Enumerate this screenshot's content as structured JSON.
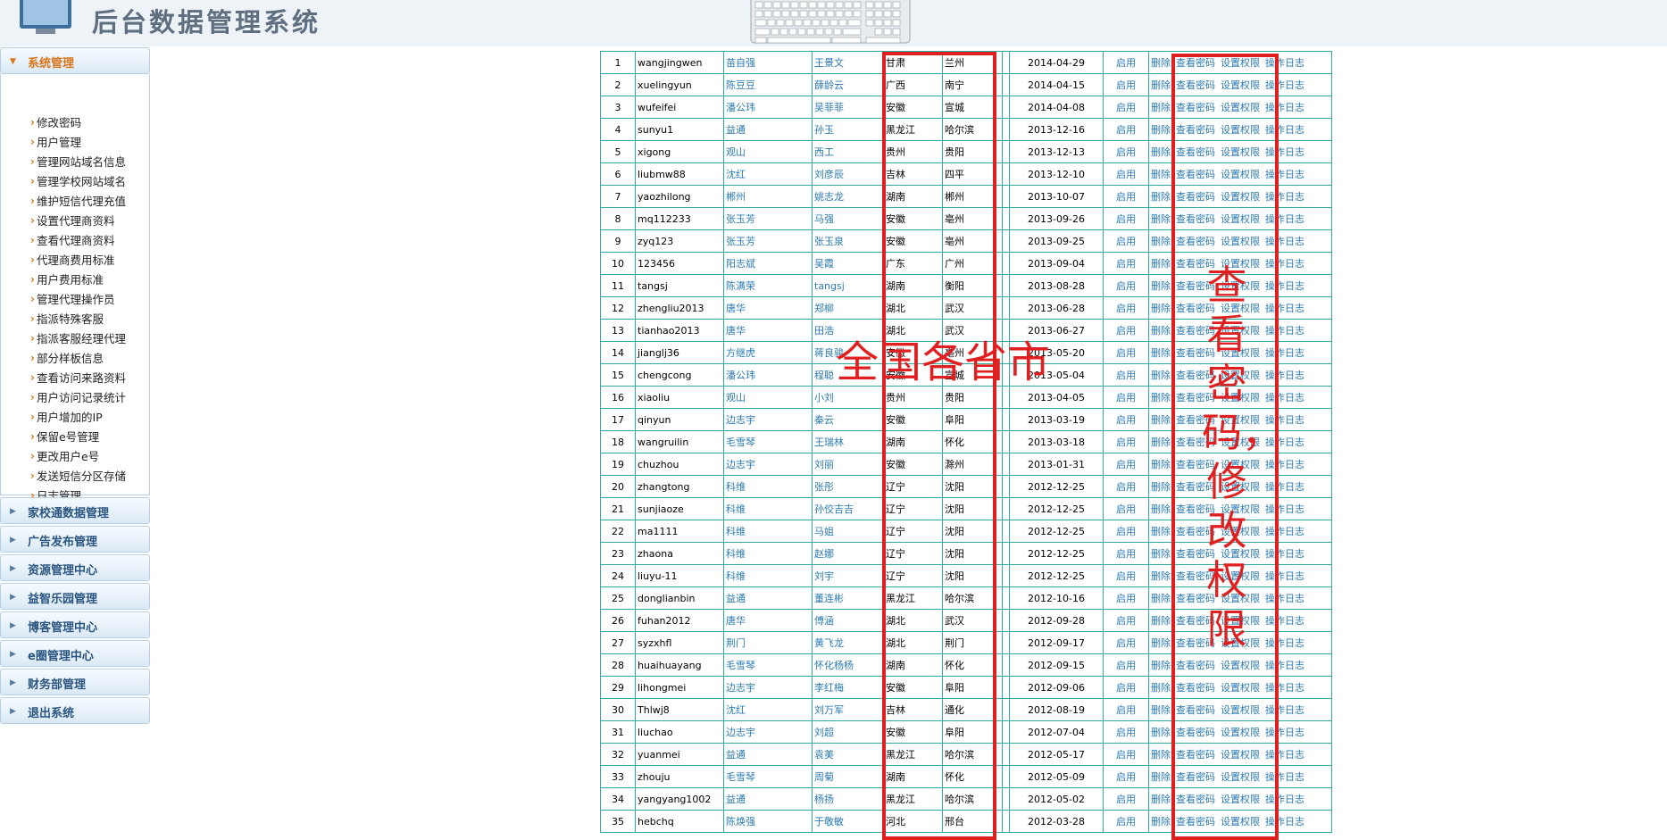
{
  "header": {
    "title": "后台数据管理系统"
  },
  "sidebar": {
    "active_panel": "系统管理",
    "items": [
      "修改密码",
      "用户管理",
      "管理网站域名信息",
      "管理学校网站域名",
      "维护短信代理充值",
      "设置代理商资料",
      "查看代理商资料",
      "代理商费用标准",
      "用户费用标准",
      "管理代理操作员",
      "指派特殊客服",
      "指派客服经理代理",
      "部分样板信息",
      "查看访问来路资料",
      "用户访问记录统计",
      "用户增加的IP",
      "保留e号管理",
      "更改用户e号",
      "发送短信分区存储",
      "日志管理"
    ],
    "panels": [
      "家校通数据管理",
      "广告发布管理",
      "资源管理中心",
      "益智乐园管理",
      "博客管理中心",
      "e圈管理中心",
      "财务部管理",
      "退出系统"
    ]
  },
  "table": {
    "enable_label": "启用",
    "actions": [
      "删除",
      "查看密码",
      "设置权限",
      "操作日志"
    ],
    "rows": [
      [
        "1",
        "wangjingwen",
        "苗自强",
        "王景文",
        "甘肃",
        "兰州",
        "2014-04-29"
      ],
      [
        "2",
        "xuelingyun",
        "陈豆豆",
        "薛龄云",
        "广西",
        "南宁",
        "2014-04-15"
      ],
      [
        "3",
        "wufeifei",
        "潘公玮",
        "吴菲菲",
        "安徽",
        "宣城",
        "2014-04-08"
      ],
      [
        "4",
        "sunyu1",
        "益通",
        "孙玉",
        "黑龙江",
        "哈尔滨",
        "2013-12-16"
      ],
      [
        "5",
        "xigong",
        "观山",
        "西工",
        "贵州",
        "贵阳",
        "2013-12-13"
      ],
      [
        "6",
        "liubmw88",
        "沈红",
        "刘彦辰",
        "吉林",
        "四平",
        "2013-12-10"
      ],
      [
        "7",
        "yaozhilong",
        "郴州",
        "姚志龙",
        "湖南",
        "郴州",
        "2013-10-07"
      ],
      [
        "8",
        "mq112233",
        "张玉芳",
        "马强",
        "安徽",
        "亳州",
        "2013-09-26"
      ],
      [
        "9",
        "zyq123",
        "张玉芳",
        "张玉泉",
        "安徽",
        "亳州",
        "2013-09-25"
      ],
      [
        "10",
        "123456",
        "阳志斌",
        "吴霞",
        "广东",
        "广州",
        "2013-09-04"
      ],
      [
        "11",
        "tangsj",
        "陈满荣",
        "tangsj",
        "湖南",
        "衡阳",
        "2013-08-28"
      ],
      [
        "12",
        "zhengliu2013",
        "唐华",
        "郑柳",
        "湖北",
        "武汉",
        "2013-06-28"
      ],
      [
        "13",
        "tianhao2013",
        "唐华",
        "田浩",
        "湖北",
        "武汉",
        "2013-06-27"
      ],
      [
        "14",
        "jianglj36",
        "方继虎",
        "蒋良骏",
        "安徽",
        "亳州",
        "2013-05-20"
      ],
      [
        "15",
        "chengcong",
        "潘公玮",
        "程聪",
        "安徽",
        "宣城",
        "2013-05-04"
      ],
      [
        "16",
        "xiaoliu",
        "观山",
        "小刘",
        "贵州",
        "贵阳",
        "2013-04-05"
      ],
      [
        "17",
        "qinyun",
        "边志宇",
        "秦云",
        "安徽",
        "阜阳",
        "2013-03-19"
      ],
      [
        "18",
        "wangruilin",
        "毛雪琴",
        "王瑞林",
        "湖南",
        "怀化",
        "2013-03-18"
      ],
      [
        "19",
        "chuzhou",
        "边志宇",
        "刘丽",
        "安徽",
        "滁州",
        "2013-01-31"
      ],
      [
        "20",
        "zhangtong",
        "科维",
        "张彤",
        "辽宁",
        "沈阳",
        "2012-12-25"
      ],
      [
        "21",
        "sunjiaoze",
        "科维",
        "孙佼吉吉",
        "辽宁",
        "沈阳",
        "2012-12-25"
      ],
      [
        "22",
        "ma1111",
        "科维",
        "马姐",
        "辽宁",
        "沈阳",
        "2012-12-25"
      ],
      [
        "23",
        "zhaona",
        "科维",
        "赵娜",
        "辽宁",
        "沈阳",
        "2012-12-25"
      ],
      [
        "24",
        "liuyu-11",
        "科维",
        "刘宇",
        "辽宁",
        "沈阳",
        "2012-12-25"
      ],
      [
        "25",
        "donglianbin",
        "益通",
        "董连彬",
        "黑龙江",
        "哈尔滨",
        "2012-10-16"
      ],
      [
        "26",
        "fuhan2012",
        "唐华",
        "傅涵",
        "湖北",
        "武汉",
        "2012-09-28"
      ],
      [
        "27",
        "syzxhfl",
        "荆门",
        "黄飞龙",
        "湖北",
        "荆门",
        "2012-09-17"
      ],
      [
        "28",
        "huaihuayang",
        "毛雪琴",
        "怀化杨杨",
        "湖南",
        "怀化",
        "2012-09-15"
      ],
      [
        "29",
        "lihongmei",
        "边志宇",
        "李红梅",
        "安徽",
        "阜阳",
        "2012-09-06"
      ],
      [
        "30",
        "Thlwj8",
        "沈红",
        "刘万军",
        "吉林",
        "通化",
        "2012-08-19"
      ],
      [
        "31",
        "liuchao",
        "边志宇",
        "刘超",
        "安徽",
        "阜阳",
        "2012-07-04"
      ],
      [
        "32",
        "yuanmei",
        "益通",
        "袁美",
        "黑龙江",
        "哈尔滨",
        "2012-05-17"
      ],
      [
        "33",
        "zhouju",
        "毛雪琴",
        "周菊",
        "湖南",
        "怀化",
        "2012-05-09"
      ],
      [
        "34",
        "yangyang1002",
        "益通",
        "杨扬",
        "黑龙江",
        "哈尔滨",
        "2012-05-02"
      ],
      [
        "35",
        "hebchq",
        "陈焕强",
        "于敬敏",
        "河北",
        "邢台",
        "2012-03-28"
      ]
    ]
  },
  "annotations": {
    "province": "全国各省市",
    "password": "查看密码，修改权限"
  },
  "colors": {
    "accent": "#d9741a",
    "grid": "#2fa9a0",
    "link": "#2a7ab0",
    "annotation": "#e02020"
  }
}
